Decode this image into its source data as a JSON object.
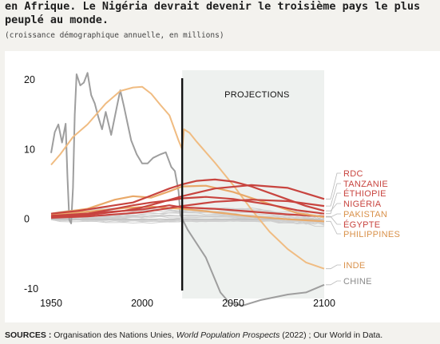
{
  "header": {
    "title": "en Afrique. Le Nigéria devrait devenir le troisième pays le plus peuplé au monde.",
    "subtitle": "(croissance démographique annuelle, en millions)"
  },
  "footer": {
    "sources_label": "SOURCES :",
    "sources_pre": " Organisation des Nations Unies, ",
    "sources_italic": "World Population Prospects",
    "sources_post": " (2022) ; Our World in Data."
  },
  "chart_data": {
    "type": "line",
    "xlim": [
      1950,
      2100
    ],
    "ylim": [
      -10,
      20
    ],
    "x_ticks": [
      "1950",
      "2000",
      "2050",
      "2100"
    ],
    "y_ticks": [
      "-10",
      "0",
      "10",
      "20"
    ],
    "divider_year": 2022,
    "shaded_region": [
      2022,
      2100
    ],
    "annotation": "PROJECTIONS",
    "background_lines_color": "#cfcfcf",
    "series": [
      {
        "name": "RDC",
        "color": "#c8443f",
        "points": [
          [
            1950,
            0.3
          ],
          [
            1970,
            0.6
          ],
          [
            1990,
            1.2
          ],
          [
            2000,
            1.7
          ],
          [
            2010,
            2.4
          ],
          [
            2022,
            3.3
          ],
          [
            2040,
            4.4
          ],
          [
            2060,
            4.9
          ],
          [
            2080,
            4.5
          ],
          [
            2100,
            2.9
          ]
        ]
      },
      {
        "name": "TANZANIE",
        "color": "#c8443f",
        "points": [
          [
            1950,
            0.2
          ],
          [
            1970,
            0.4
          ],
          [
            1990,
            0.8
          ],
          [
            2000,
            1.0
          ],
          [
            2010,
            1.4
          ],
          [
            2022,
            1.9
          ],
          [
            2040,
            2.5
          ],
          [
            2060,
            2.8
          ],
          [
            2080,
            2.6
          ],
          [
            2100,
            1.9
          ]
        ]
      },
      {
        "name": "ÉTHIOPIE",
        "color": "#c8443f",
        "points": [
          [
            1950,
            0.4
          ],
          [
            1970,
            0.8
          ],
          [
            1985,
            1.5
          ],
          [
            1995,
            2.0
          ],
          [
            2005,
            2.4
          ],
          [
            2015,
            2.7
          ],
          [
            2022,
            3.0
          ],
          [
            2035,
            3.2
          ],
          [
            2050,
            2.9
          ],
          [
            2070,
            2.1
          ],
          [
            2085,
            1.3
          ],
          [
            2100,
            0.8
          ]
        ]
      },
      {
        "name": "NIGÉRIA",
        "color": "#c8443f",
        "points": [
          [
            1950,
            0.8
          ],
          [
            1965,
            1.2
          ],
          [
            1980,
            1.8
          ],
          [
            1995,
            2.4
          ],
          [
            2005,
            3.4
          ],
          [
            2015,
            4.4
          ],
          [
            2022,
            5.0
          ],
          [
            2030,
            5.5
          ],
          [
            2040,
            5.7
          ],
          [
            2050,
            5.4
          ],
          [
            2060,
            4.7
          ],
          [
            2075,
            3.3
          ],
          [
            2090,
            1.9
          ],
          [
            2100,
            1.2
          ]
        ]
      },
      {
        "name": "PAKISTAN",
        "color": "#e9a969",
        "points": [
          [
            1950,
            0.8
          ],
          [
            1970,
            1.5
          ],
          [
            1985,
            2.8
          ],
          [
            1995,
            3.3
          ],
          [
            2005,
            3.1
          ],
          [
            2015,
            4.0
          ],
          [
            2022,
            4.7
          ],
          [
            2035,
            4.8
          ],
          [
            2050,
            3.9
          ],
          [
            2070,
            2.2
          ],
          [
            2085,
            0.9
          ],
          [
            2100,
            0.3
          ]
        ]
      },
      {
        "name": "ÉGYPTE",
        "color": "#c8443f",
        "points": [
          [
            1950,
            0.5
          ],
          [
            1975,
            0.9
          ],
          [
            2000,
            1.4
          ],
          [
            2015,
            2.0
          ],
          [
            2022,
            1.7
          ],
          [
            2040,
            1.5
          ],
          [
            2060,
            1.1
          ],
          [
            2080,
            0.7
          ],
          [
            2100,
            0.4
          ]
        ]
      },
      {
        "name": "PHILIPPINES",
        "color": "#e9a969",
        "points": [
          [
            1950,
            0.7
          ],
          [
            1970,
            1.1
          ],
          [
            1990,
            1.6
          ],
          [
            2005,
            1.8
          ],
          [
            2015,
            1.6
          ],
          [
            2022,
            1.5
          ],
          [
            2040,
            1.0
          ],
          [
            2060,
            0.4
          ],
          [
            2080,
            0.0
          ],
          [
            2100,
            -0.3
          ]
        ]
      },
      {
        "name": "INDE",
        "color": "#f0bc82",
        "points": [
          [
            1950,
            7.8
          ],
          [
            1955,
            9.3
          ],
          [
            1962,
            11.8
          ],
          [
            1970,
            13.6
          ],
          [
            1980,
            16.6
          ],
          [
            1988,
            18.4
          ],
          [
            1995,
            18.9
          ],
          [
            2000,
            19.0
          ],
          [
            2005,
            18.0
          ],
          [
            2010,
            16.4
          ],
          [
            2015,
            14.9
          ],
          [
            2020,
            11.3
          ],
          [
            2022,
            10.0
          ],
          [
            2023,
            12.9
          ],
          [
            2026,
            12.4
          ],
          [
            2030,
            11.1
          ],
          [
            2040,
            8.1
          ],
          [
            2050,
            4.9
          ],
          [
            2060,
            1.4
          ],
          [
            2070,
            -1.8
          ],
          [
            2080,
            -4.3
          ],
          [
            2090,
            -6.2
          ],
          [
            2100,
            -7.1
          ]
        ]
      },
      {
        "name": "CHINE",
        "color": "#9e9e9e",
        "points": [
          [
            1950,
            9.5
          ],
          [
            1952,
            12.5
          ],
          [
            1954,
            13.6
          ],
          [
            1956,
            11.0
          ],
          [
            1958,
            13.7
          ],
          [
            1959,
            6.0
          ],
          [
            1960,
            -0.1
          ],
          [
            1961,
            -0.6
          ],
          [
            1962,
            4.5
          ],
          [
            1963,
            15.0
          ],
          [
            1964,
            20.8
          ],
          [
            1966,
            19.2
          ],
          [
            1968,
            19.6
          ],
          [
            1970,
            21.0
          ],
          [
            1972,
            17.8
          ],
          [
            1974,
            16.6
          ],
          [
            1976,
            14.6
          ],
          [
            1978,
            12.9
          ],
          [
            1980,
            15.4
          ],
          [
            1983,
            12.1
          ],
          [
            1986,
            16.0
          ],
          [
            1988,
            18.5
          ],
          [
            1990,
            16.2
          ],
          [
            1992,
            13.7
          ],
          [
            1994,
            11.3
          ],
          [
            1997,
            9.3
          ],
          [
            2000,
            8.0
          ],
          [
            2003,
            8.0
          ],
          [
            2006,
            8.8
          ],
          [
            2010,
            9.3
          ],
          [
            2013,
            9.6
          ],
          [
            2016,
            7.5
          ],
          [
            2018,
            6.9
          ],
          [
            2020,
            4.0
          ],
          [
            2021,
            0.6
          ],
          [
            2025,
            -1.5
          ],
          [
            2035,
            -5.5
          ],
          [
            2043,
            -10.5
          ],
          [
            2048,
            -12.0
          ],
          [
            2055,
            -12.4
          ],
          [
            2065,
            -11.6
          ],
          [
            2080,
            -10.8
          ],
          [
            2090,
            -10.5
          ],
          [
            2100,
            -9.4
          ]
        ]
      }
    ]
  }
}
